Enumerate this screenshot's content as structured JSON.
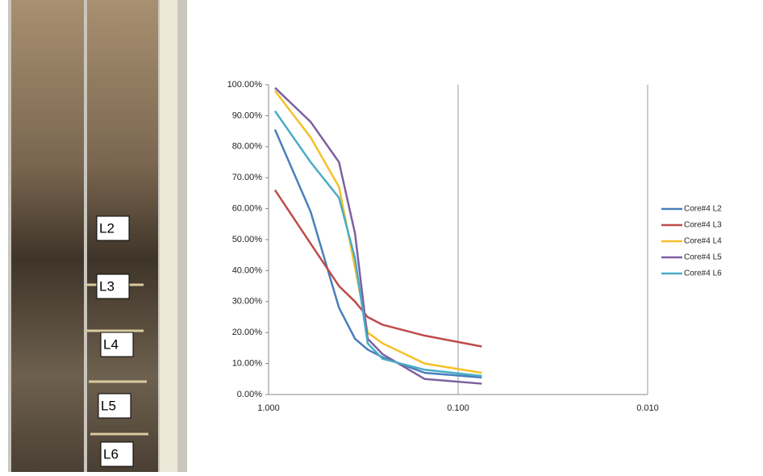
{
  "photo": {
    "labels": [
      "L2",
      "L3",
      "L4",
      "L5",
      "L6"
    ]
  },
  "chart_data": {
    "type": "line",
    "x_scale": "log",
    "grid": "x",
    "legend": "right",
    "x": [
      0.925,
      0.6,
      0.425,
      0.35,
      0.3,
      0.25,
      0.15,
      0.075
    ],
    "xlim": [
      1,
      0.01
    ],
    "xticks": [
      {
        "value": 1,
        "label": "1.000"
      },
      {
        "value": 0.1,
        "label": "0.100"
      },
      {
        "value": 0.01,
        "label": "0.010"
      }
    ],
    "ylim": [
      0,
      100
    ],
    "yticks": [
      {
        "value": 0,
        "label": "0.00%"
      },
      {
        "value": 10,
        "label": "10.00%"
      },
      {
        "value": 20,
        "label": "20.00%"
      },
      {
        "value": 30,
        "label": "30.00%"
      },
      {
        "value": 40,
        "label": "40.00%"
      },
      {
        "value": 50,
        "label": "50.00%"
      },
      {
        "value": 60,
        "label": "60.00%"
      },
      {
        "value": 70,
        "label": "70.00%"
      },
      {
        "value": 80,
        "label": "80.00%"
      },
      {
        "value": 90,
        "label": "90.00%"
      },
      {
        "value": 100,
        "label": "100.00%"
      }
    ],
    "series": [
      {
        "name": "Core#4 L2",
        "color": "#4a7ebb",
        "values": [
          85.5,
          59,
          28,
          18,
          14.5,
          12,
          7,
          5.5
        ]
      },
      {
        "name": "Core#4 L3",
        "color": "#be4b48",
        "values": [
          66,
          48.7,
          35,
          30,
          25,
          22.5,
          19,
          15.5
        ]
      },
      {
        "name": "Core#4 L4",
        "color": "#f5c028",
        "values": [
          98,
          83,
          67,
          41,
          20,
          16.5,
          10,
          7
        ]
      },
      {
        "name": "Core#4 L5",
        "color": "#7d60a0",
        "values": [
          99,
          88,
          75,
          52,
          18,
          13,
          5,
          3.5
        ]
      },
      {
        "name": "Core#4 L6",
        "color": "#4bacc6",
        "values": [
          91.5,
          75,
          63.5,
          44,
          16.5,
          11.5,
          8,
          6
        ]
      }
    ]
  }
}
